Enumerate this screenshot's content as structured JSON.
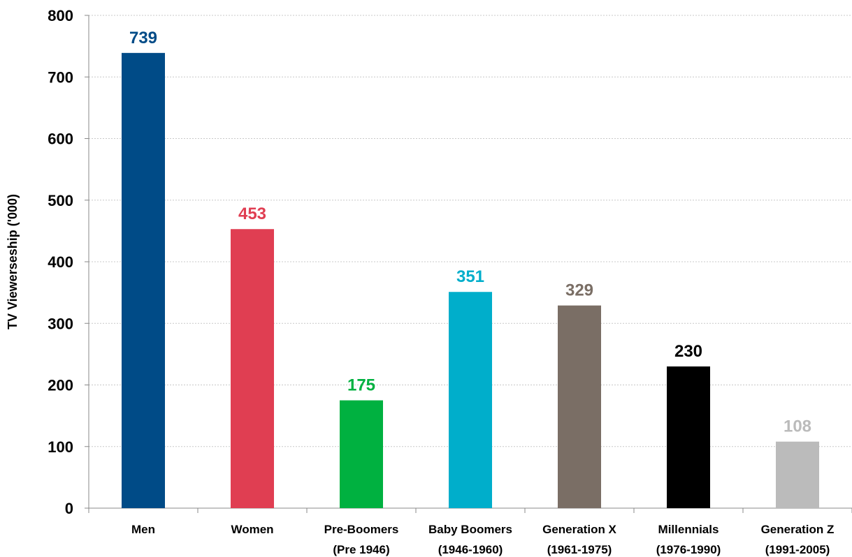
{
  "chart_data": {
    "type": "bar",
    "title": "",
    "xlabel": "",
    "ylabel": "TV Viewerseship ('000)",
    "ylim": [
      0,
      800
    ],
    "yticks": [
      0,
      100,
      200,
      300,
      400,
      500,
      600,
      700,
      800
    ],
    "grid": true,
    "legend": "none",
    "categories": [
      [
        "Men"
      ],
      [
        "Women"
      ],
      [
        "Pre-Boomers",
        "(Pre 1946)"
      ],
      [
        "Baby Boomers",
        "(1946-1960)"
      ],
      [
        "Generation X",
        "(1961-1975)"
      ],
      [
        "Millennials",
        "(1976-1990)"
      ],
      [
        "Generation Z",
        "(1991-2005)"
      ]
    ],
    "values": [
      739,
      453,
      175,
      351,
      329,
      230,
      108
    ],
    "colors": [
      "#004B87",
      "#E03E52",
      "#00B140",
      "#00AECB",
      "#7A6E65",
      "#000000",
      "#BBBBBB"
    ]
  }
}
